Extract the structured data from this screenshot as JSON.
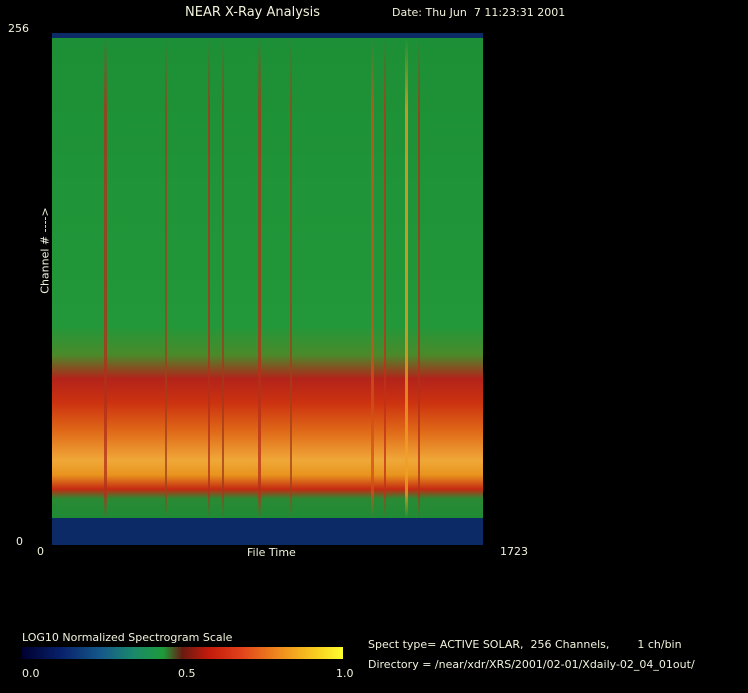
{
  "header": {
    "title": "NEAR X-Ray Analysis",
    "date": "Date: Thu Jun  7 11:23:31 2001"
  },
  "plot": {
    "y_axis_label": "Channel # ---->",
    "x_axis_label": "File Time",
    "y_top": "256",
    "y_bottom": "0",
    "x_left": "0",
    "x_right": "1723"
  },
  "colorbar": {
    "title": "LOG10 Normalized Spectrogram Scale",
    "ticks": [
      "0.0",
      "0.5",
      "1.0"
    ]
  },
  "info": {
    "line1": "Spect type= ACTIVE SOLAR,  256 Channels,        1 ch/bin",
    "line2": "Directory = /near/xdr/XRS/2001/02-01/Xdaily-02_04_01out/"
  }
}
